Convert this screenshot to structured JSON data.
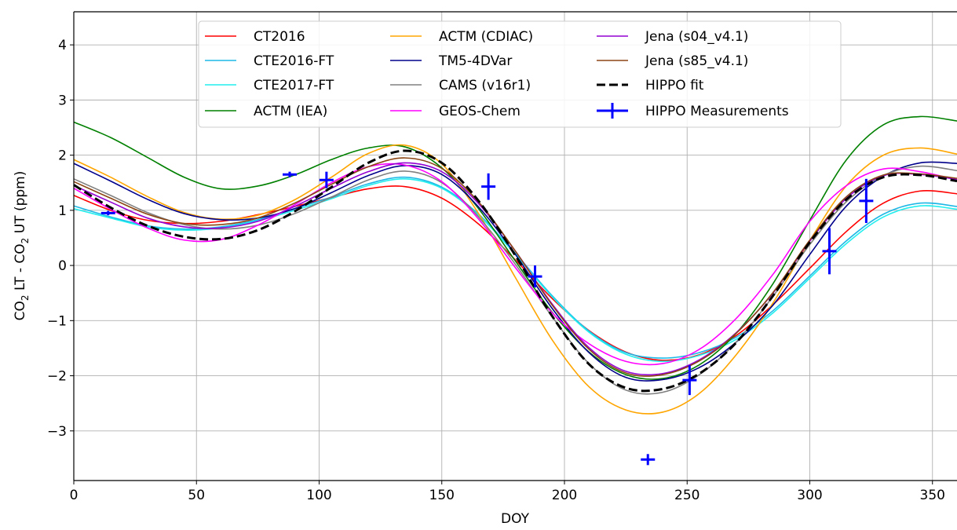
{
  "chart_data": {
    "type": "line",
    "xlabel": "DOY",
    "ylabel": {
      "prefix": "CO",
      "sub1": "2",
      "mid": " LT - CO",
      "sub2": "2",
      "suffix": " UT (ppm)"
    },
    "xlim": [
      0,
      360
    ],
    "ylim": [
      -3.9,
      4.6
    ],
    "xticks": [
      0,
      50,
      100,
      150,
      200,
      250,
      300,
      350
    ],
    "yticks": [
      -3,
      -2,
      -1,
      0,
      1,
      2,
      3,
      4
    ],
    "ytick_labels": [
      "−3",
      "−2",
      "−1",
      "0",
      "1",
      "2",
      "3",
      "4"
    ],
    "grid": true,
    "legend_position": "upper center",
    "x": [
      0,
      15,
      30,
      45,
      60,
      75,
      90,
      105,
      120,
      135,
      150,
      165,
      180,
      195,
      210,
      225,
      240,
      255,
      270,
      285,
      300,
      315,
      330,
      345,
      360
    ],
    "series": [
      {
        "name": "CT2016",
        "color": "#ff0000",
        "style": "solid",
        "values": [
          1.27,
          1.0,
          0.82,
          0.76,
          0.8,
          0.92,
          1.07,
          1.23,
          1.39,
          1.43,
          1.22,
          0.75,
          0.1,
          -0.6,
          -1.18,
          -1.57,
          -1.72,
          -1.62,
          -1.27,
          -0.71,
          -0.05,
          0.62,
          1.13,
          1.35,
          1.3
        ]
      },
      {
        "name": "CTE2016-FT",
        "color": "#1eb8e6",
        "style": "solid",
        "values": [
          1.08,
          0.88,
          0.72,
          0.66,
          0.7,
          0.83,
          1.03,
          1.24,
          1.48,
          1.6,
          1.42,
          0.93,
          0.22,
          -0.55,
          -1.19,
          -1.58,
          -1.68,
          -1.58,
          -1.3,
          -0.82,
          -0.19,
          0.45,
          0.93,
          1.13,
          1.07
        ]
      },
      {
        "name": "CTE2017-FT",
        "color": "#22eeee",
        "style": "solid",
        "values": [
          1.03,
          0.86,
          0.7,
          0.64,
          0.68,
          0.81,
          1.0,
          1.21,
          1.45,
          1.57,
          1.4,
          0.91,
          0.2,
          -0.57,
          -1.21,
          -1.61,
          -1.74,
          -1.63,
          -1.34,
          -0.86,
          -0.23,
          0.4,
          0.88,
          1.08,
          1.02
        ]
      },
      {
        "name": "ACTM (IEA)",
        "color": "#008000",
        "style": "solid",
        "values": [
          2.6,
          2.32,
          1.96,
          1.6,
          1.39,
          1.44,
          1.64,
          1.92,
          2.13,
          2.15,
          1.77,
          1.03,
          0.08,
          -0.85,
          -1.57,
          -1.98,
          -2.05,
          -1.8,
          -1.23,
          -0.33,
          0.82,
          1.92,
          2.55,
          2.7,
          2.62
        ]
      },
      {
        "name": "ACTM (CDIAC)",
        "color": "#ffa500",
        "style": "solid",
        "values": [
          1.92,
          1.6,
          1.25,
          0.96,
          0.84,
          0.91,
          1.19,
          1.6,
          2.03,
          2.18,
          1.84,
          0.94,
          -0.22,
          -1.35,
          -2.2,
          -2.62,
          -2.66,
          -2.32,
          -1.62,
          -0.68,
          0.45,
          1.45,
          2.0,
          2.13,
          2.02
        ]
      },
      {
        "name": "TM5-4DVar",
        "color": "#00008b",
        "style": "solid",
        "values": [
          1.85,
          1.53,
          1.2,
          0.94,
          0.83,
          0.86,
          1.03,
          1.32,
          1.63,
          1.81,
          1.65,
          1.06,
          0.2,
          -0.78,
          -1.58,
          -2.03,
          -2.07,
          -1.85,
          -1.39,
          -0.72,
          0.2,
          1.08,
          1.62,
          1.86,
          1.85
        ]
      },
      {
        "name": "CAMS (v16r1)",
        "color": "#808080",
        "style": "solid",
        "values": [
          1.57,
          1.27,
          0.96,
          0.74,
          0.66,
          0.73,
          0.94,
          1.24,
          1.55,
          1.71,
          1.5,
          0.88,
          0.02,
          -0.93,
          -1.78,
          -2.26,
          -2.3,
          -1.98,
          -1.39,
          -0.56,
          0.38,
          1.16,
          1.63,
          1.8,
          1.72
        ]
      },
      {
        "name": "GEOS-Chem",
        "color": "#ff00ff",
        "style": "solid",
        "values": [
          1.4,
          1.02,
          0.68,
          0.46,
          0.47,
          0.73,
          1.1,
          1.5,
          1.79,
          1.82,
          1.52,
          0.84,
          -0.04,
          -0.86,
          -1.42,
          -1.74,
          -1.78,
          -1.52,
          -0.96,
          -0.16,
          0.8,
          1.45,
          1.75,
          1.7,
          1.55
        ]
      },
      {
        "name": "Jena (s04_v4.1)",
        "color": "#9400d3",
        "style": "solid",
        "values": [
          1.45,
          1.15,
          0.86,
          0.7,
          0.68,
          0.8,
          1.07,
          1.4,
          1.7,
          1.86,
          1.7,
          1.12,
          0.26,
          -0.7,
          -1.49,
          -1.92,
          -1.96,
          -1.71,
          -1.22,
          -0.5,
          0.44,
          1.22,
          1.63,
          1.65,
          1.56
        ]
      },
      {
        "name": "Jena (s85_v4.1)",
        "color": "#8b4513",
        "style": "solid",
        "values": [
          1.52,
          1.22,
          0.93,
          0.76,
          0.74,
          0.86,
          1.13,
          1.47,
          1.79,
          1.95,
          1.76,
          1.15,
          0.26,
          -0.72,
          -1.52,
          -1.95,
          -1.98,
          -1.73,
          -1.23,
          -0.49,
          0.46,
          1.25,
          1.64,
          1.66,
          1.58
        ]
      },
      {
        "name": "HIPPO fit",
        "color": "#000000",
        "style": "dashed",
        "values": [
          1.46,
          1.05,
          0.72,
          0.52,
          0.48,
          0.64,
          0.98,
          1.42,
          1.86,
          2.08,
          1.86,
          1.17,
          0.18,
          -0.92,
          -1.79,
          -2.22,
          -2.24,
          -1.96,
          -1.4,
          -0.55,
          0.42,
          1.2,
          1.6,
          1.64,
          1.53
        ]
      }
    ],
    "hippo_measurements": {
      "name": "HIPPO Measurements",
      "color": "#0000ff",
      "points": [
        {
          "x": 14,
          "y": 0.95,
          "yerr": 0.04
        },
        {
          "x": 88,
          "y": 1.65,
          "yerr": 0.05
        },
        {
          "x": 103,
          "y": 1.55,
          "yerr": 0.15
        },
        {
          "x": 169,
          "y": 1.43,
          "yerr": 0.24
        },
        {
          "x": 188,
          "y": -0.2,
          "yerr": 0.2
        },
        {
          "x": 234,
          "y": -3.52,
          "yerr": 0.1
        },
        {
          "x": 251,
          "y": -2.08,
          "yerr": 0.27
        },
        {
          "x": 308,
          "y": 0.26,
          "yerr": 0.42
        },
        {
          "x": 323,
          "y": 1.17,
          "yerr": 0.4
        }
      ]
    },
    "legend_columns": [
      [
        "CT2016",
        "CTE2016-FT",
        "CTE2017-FT",
        "ACTM (IEA)"
      ],
      [
        "ACTM (CDIAC)",
        "TM5-4DVar",
        "CAMS (v16r1)",
        "GEOS-Chem"
      ],
      [
        "Jena (s04_v4.1)",
        "Jena (s85_v4.1)",
        "HIPPO fit",
        "HIPPO Measurements"
      ]
    ]
  }
}
